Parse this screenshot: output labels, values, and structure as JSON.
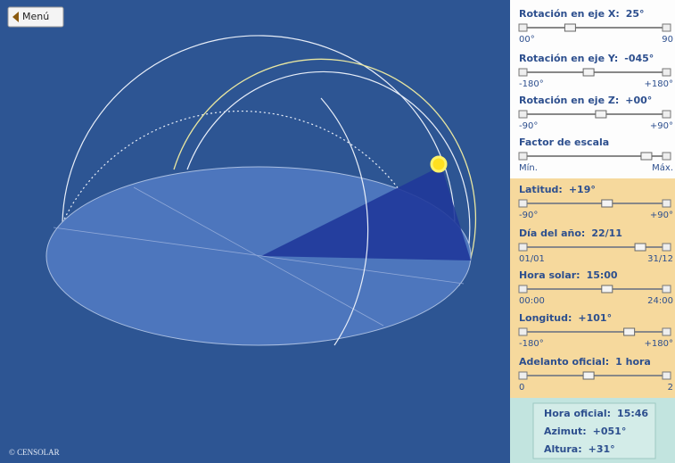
{
  "menu": "Menú",
  "copyright": "© CENSOLAR",
  "controls": [
    {
      "label": "Rotación en eje X:",
      "value": "25°",
      "min": "00°",
      "max": "90"
    },
    {
      "label": "Rotación en eje Y:",
      "value": "-045°",
      "min": "-180°",
      "max": "+180°"
    },
    {
      "label": "Rotación en eje Z:",
      "value": "+00°",
      "min": "-90°",
      "max": "+90°"
    },
    {
      "label": "Factor de escala",
      "min": "Mín.",
      "max": "Máx."
    },
    {
      "label": "Latitud:",
      "value": "+19°",
      "min": "-90°",
      "max": "+90°"
    },
    {
      "label": "Día del año:",
      "value": "22/11",
      "min": "01/01",
      "max": "31/12"
    },
    {
      "label": "Hora solar:",
      "value": "15:00",
      "min": "00:00",
      "max": "24:00"
    },
    {
      "label": "Longitud:",
      "value": "+101°",
      "min": "-180°",
      "max": "+180°"
    },
    {
      "label": "Adelanto oficial:",
      "value": "1 hora",
      "min": "0",
      "max": "2"
    }
  ],
  "results": [
    {
      "label": "Hora oficial:",
      "value": "15:46"
    },
    {
      "label": "Azimut:",
      "value": "+051°"
    },
    {
      "label": "Altura:",
      "value": "+31°"
    }
  ]
}
